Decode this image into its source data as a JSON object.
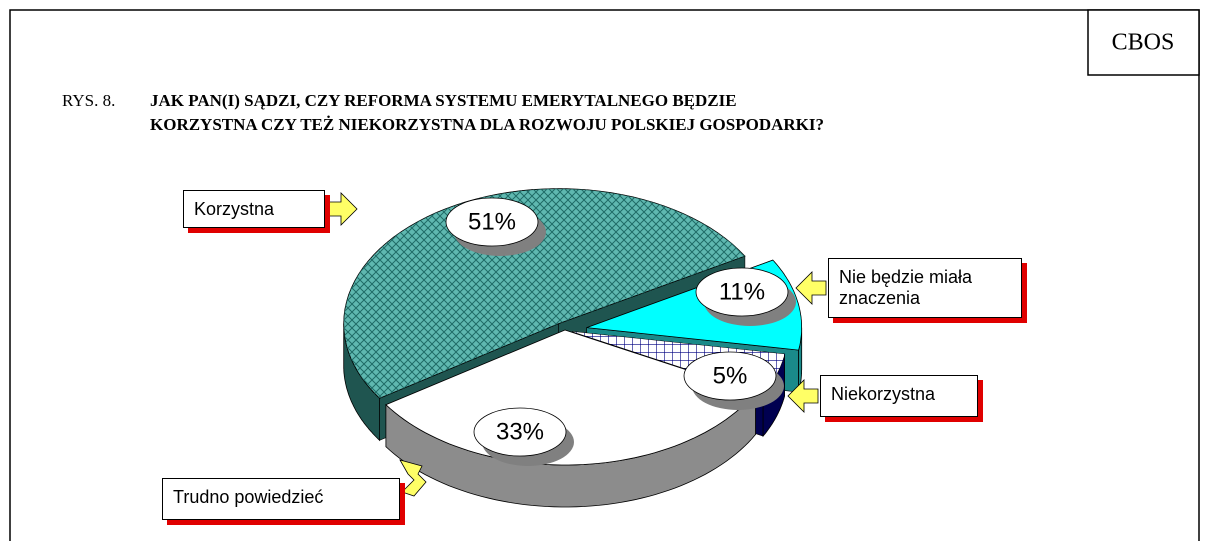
{
  "chart_data": {
    "type": "pie",
    "source": "CBOS",
    "figure_label": "RYS. 8.",
    "title": [
      "JAK PAN(I) SĄDZI, CZY REFORMA SYSTEMU EMERYTALNEGO BĘDZIE",
      "KORZYSTNA CZY TEŻ NIEKORZYSTNA DLA ROZWOJU POLSKIEJ GOSPODARKI?"
    ],
    "categories": [
      "Korzystna",
      "Nie będzie miała znaczenia",
      "Niekorzystna",
      "Trudno powiedzieć"
    ],
    "values": [
      51,
      11,
      5,
      33
    ],
    "value_labels": [
      "51%",
      "11%",
      "5%",
      "33%"
    ],
    "colors": [
      "#5fb8b0",
      "#00ffff",
      "#000080",
      "#ffffff"
    ]
  }
}
